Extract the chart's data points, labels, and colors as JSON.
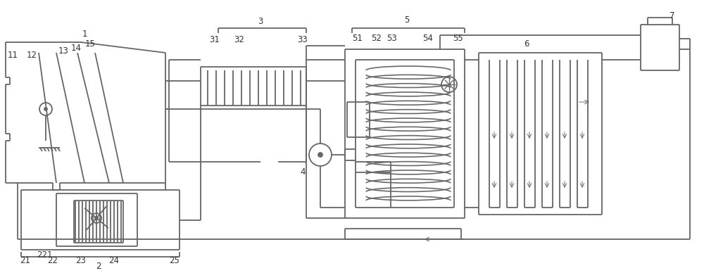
{
  "bg_color": "#ffffff",
  "line_color": "#666666",
  "label_color": "#333333",
  "line_width": 1.3,
  "font_size": 8.5,
  "fig_width": 10.0,
  "fig_height": 3.98
}
